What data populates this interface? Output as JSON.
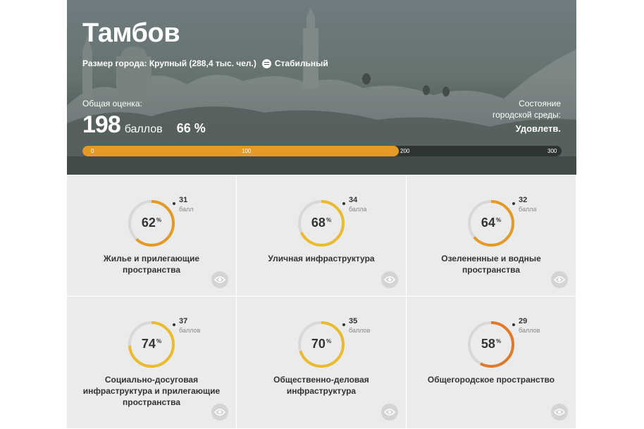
{
  "header": {
    "city": "Тамбов",
    "size_text": "Размер города: Крупный (288,4 тыс. чел.)",
    "trend_text": "Стабильный",
    "overall_label": "Общая оценка:",
    "score_value": "198",
    "score_unit": "баллов",
    "score_percent": "66 %",
    "state_label_1": "Состояние",
    "state_label_2": "городской среды:",
    "state_value": "Удовлетв.",
    "progress": {
      "value": 198,
      "max": 300
    },
    "ticks": [
      "0",
      "100",
      "200",
      "300"
    ]
  },
  "colors": {
    "accent": "#e49a26",
    "bar_bg": "#2e3334",
    "card_bg": "#ebebeb"
  },
  "cards": [
    {
      "percent": "62",
      "points": "31",
      "points_unit": "балл",
      "title_1": "Жилье и прилегающие",
      "title_2": "пространства",
      "title_3": "",
      "value": 0.62,
      "color": "#e49a26",
      "icon": "eye-icon"
    },
    {
      "percent": "68",
      "points": "34",
      "points_unit": "балла",
      "title_1": "Уличная инфраструктура",
      "title_2": "",
      "title_3": "",
      "value": 0.68,
      "color": "#eabb2e",
      "icon": "eye-icon"
    },
    {
      "percent": "64",
      "points": "32",
      "points_unit": "балла",
      "title_1": "Озелененные и водные",
      "title_2": "пространства",
      "title_3": "",
      "value": 0.64,
      "color": "#e49a26",
      "icon": "eye-icon"
    },
    {
      "percent": "74",
      "points": "37",
      "points_unit": "баллов",
      "title_1": "Социально-досуговая",
      "title_2": "инфраструктура и прилегающие",
      "title_3": "пространства",
      "value": 0.74,
      "color": "#eabb2e",
      "icon": "eye-icon"
    },
    {
      "percent": "70",
      "points": "35",
      "points_unit": "баллов",
      "title_1": "Общественно-деловая",
      "title_2": "инфраструктура",
      "title_3": "",
      "value": 0.7,
      "color": "#eabb2e",
      "icon": "eye-icon"
    },
    {
      "percent": "58",
      "points": "29",
      "points_unit": "баллов",
      "title_1": "Общегородское пространство",
      "title_2": "",
      "title_3": "",
      "value": 0.58,
      "color": "#e07a2a",
      "icon": "eye-icon"
    }
  ]
}
